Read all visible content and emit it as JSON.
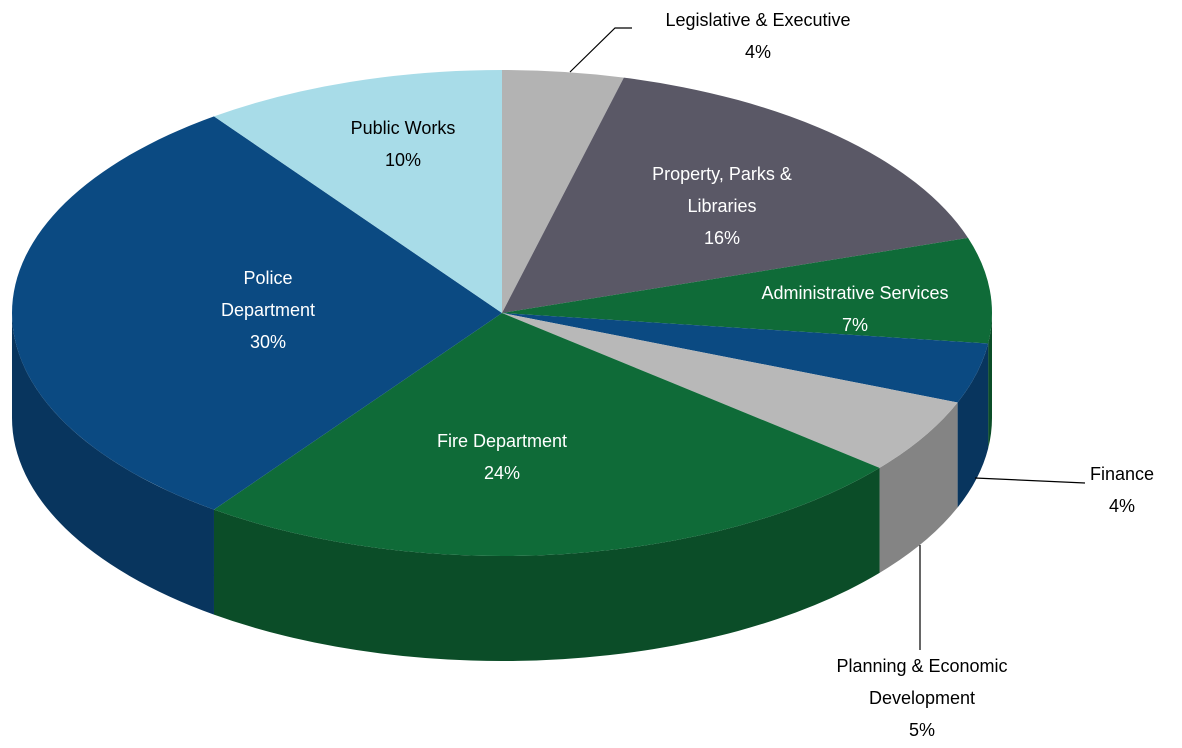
{
  "chart_data": {
    "type": "pie3d",
    "categories": [
      "Legislative & Executive",
      "Property, Parks & Libraries",
      "Administrative Services",
      "Finance",
      "Planning & Economic Development",
      "Fire Department",
      "Police Department",
      "Public Works"
    ],
    "values": [
      4,
      16,
      7,
      4,
      5,
      24,
      30,
      10
    ],
    "value_labels": [
      "4%",
      "16%",
      "7%",
      "4%",
      "5%",
      "24%",
      "30%",
      "10%"
    ],
    "colors": [
      "#b3b3b3",
      "#5a5866",
      "#0f6b38",
      "#0b4a82",
      "#b8b8b8",
      "#0f6b38",
      "#0b4a82",
      "#a8dce8"
    ]
  }
}
